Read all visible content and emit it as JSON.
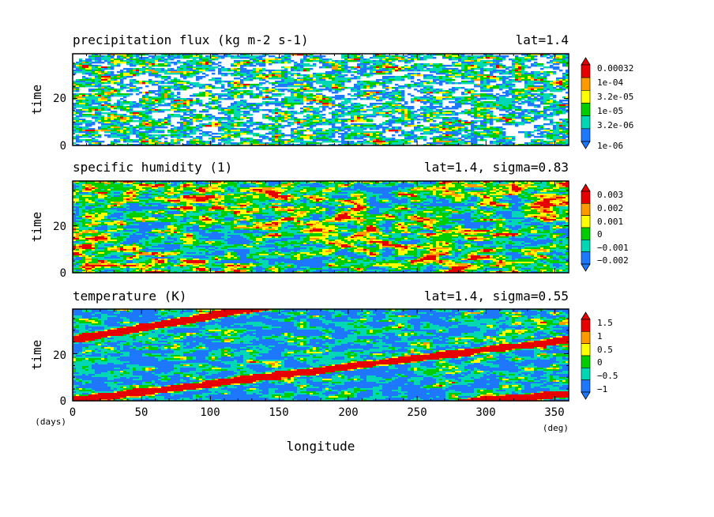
{
  "colors": [
    "#1e78ff",
    "#00d7b4",
    "#00cd00",
    "#ffff00",
    "#ff9b00",
    "#e60000"
  ],
  "chart_data": [
    {
      "type": "heatmap",
      "title": "precipitation flux (kg m-2 s-1)",
      "subtitle": "lat=1.4",
      "ylabel": "time",
      "xlim": [
        0,
        360
      ],
      "ylim": [
        0,
        39
      ],
      "yticks": [
        "0",
        "20"
      ],
      "colorbar": [
        "1e-06",
        "3.2e-06",
        "1e-05",
        "3.2e-05",
        "1e-04",
        "0.00032"
      ],
      "pattern": "sparse"
    },
    {
      "type": "heatmap",
      "title": "specific humidity (1)",
      "subtitle": "lat=1.4, sigma=0.83",
      "ylabel": "time",
      "xlim": [
        0,
        360
      ],
      "ylim": [
        0,
        39
      ],
      "yticks": [
        "0",
        "20"
      ],
      "colorbar": [
        "−0.002",
        "−0.001",
        "0",
        "0.001",
        "0.002",
        "0.003"
      ],
      "pattern": "noise"
    },
    {
      "type": "heatmap",
      "title": "temperature (K)",
      "subtitle": "lat=1.4, sigma=0.55",
      "ylabel": "time",
      "xlabel": "longitude",
      "xlim": [
        0,
        360
      ],
      "ylim": [
        0,
        39
      ],
      "xticks": [
        "0",
        "50",
        "100",
        "150",
        "200",
        "250",
        "300",
        "350"
      ],
      "yticks": [
        "0",
        "20"
      ],
      "x_unit": "(deg)",
      "y_unit": "(days)",
      "colorbar": [
        "−1",
        "−0.5",
        "0",
        "0.5",
        "1",
        "1.5"
      ],
      "pattern": "waves",
      "wave_bands": [
        {
          "x": [
            0,
            360
          ],
          "y": [
            0,
            26
          ]
        },
        {
          "x": [
            0,
            130
          ],
          "y": [
            26,
            39
          ]
        },
        {
          "x": [
            300,
            360
          ],
          "y": [
            0,
            3
          ]
        }
      ]
    }
  ]
}
